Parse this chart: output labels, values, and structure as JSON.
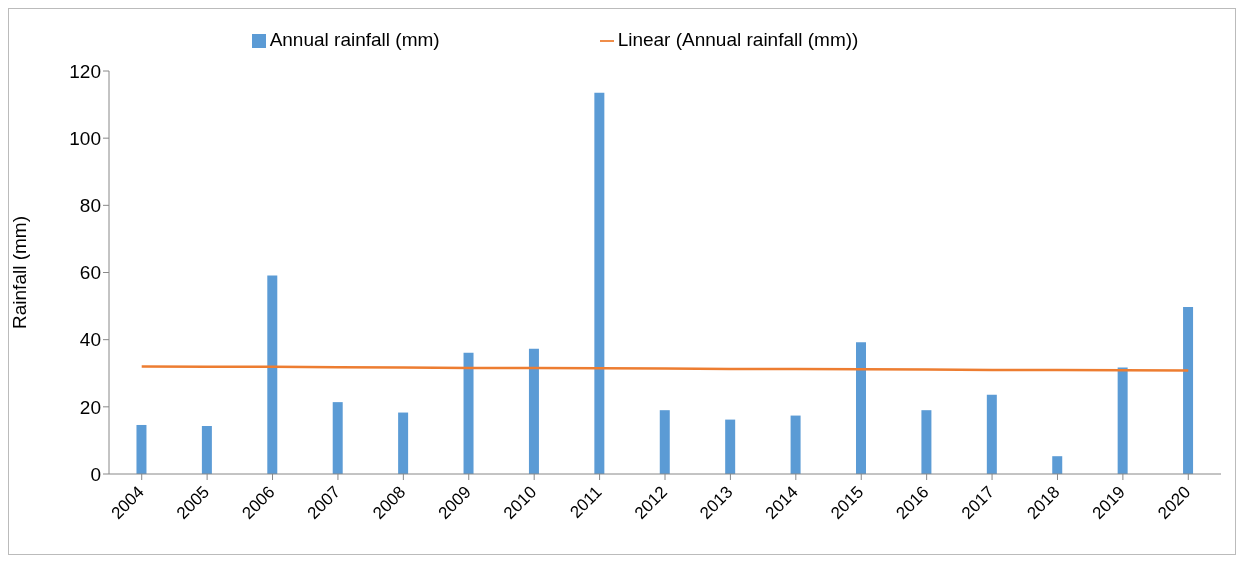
{
  "chart_data": {
    "type": "bar",
    "ylabel": "Rainfall (mm)",
    "categories": [
      "2004",
      "2005",
      "2006",
      "2007",
      "2008",
      "2009",
      "2010",
      "2011",
      "2012",
      "2013",
      "2014",
      "2015",
      "2016",
      "2017",
      "2018",
      "2019",
      "2020"
    ],
    "series": [
      {
        "name": "Annual rainfall (mm)",
        "color": "#5b9bd5",
        "values": [
          14.6,
          14.3,
          59.1,
          21.4,
          18.3,
          36.1,
          37.3,
          113.5,
          19,
          16.2,
          17.4,
          39.2,
          19,
          23.6,
          5.3,
          31.7,
          49.7
        ]
      },
      {
        "name": "Linear (Annual rainfall (mm))",
        "type": "line",
        "color": "#ed7d31",
        "values": [
          32.0,
          31.9,
          31.9,
          31.8,
          31.7,
          31.6,
          31.6,
          31.5,
          31.4,
          31.3,
          31.3,
          31.2,
          31.1,
          31.0,
          31.0,
          30.9,
          30.8
        ]
      }
    ],
    "ylim": [
      0,
      120
    ],
    "yticks": [
      0,
      20,
      40,
      60,
      80,
      100,
      120
    ],
    "grid": false,
    "legend": "top",
    "marker": "none"
  }
}
